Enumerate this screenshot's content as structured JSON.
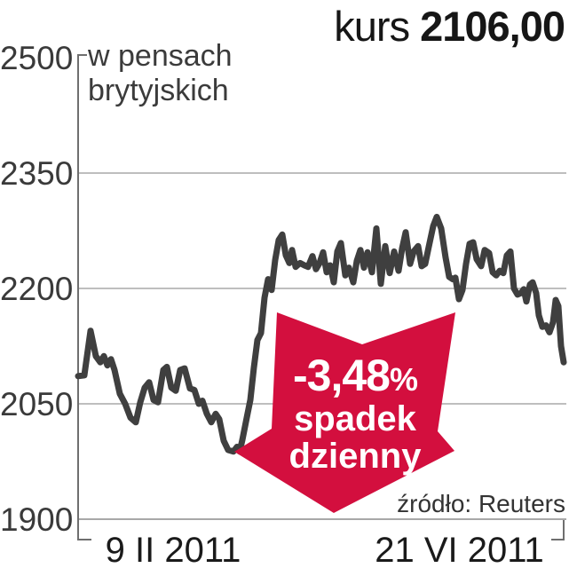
{
  "colors": {
    "line": "#3f3f3f",
    "arrow": "#d30f3e",
    "grid": "#a8a8a8",
    "axis": "#6f6f6f"
  },
  "header": {
    "kurs_label": "kurs",
    "kurs_value": "2106,00"
  },
  "chart_data": {
    "type": "line",
    "title": "kurs 2106,00",
    "ylabel": "w pensach brytyjskich",
    "xlabel": "",
    "ylim": [
      1900,
      2500
    ],
    "yticks": [
      "2500",
      "2350",
      "2200",
      "2050",
      "1900"
    ],
    "xticks": [
      "9 II 2011",
      "21 VI 2011"
    ],
    "grid": "horizontal",
    "legend": "none",
    "source": "źródło: Reuters",
    "annotation": {
      "pct": "-3,48",
      "pct_suffix": "%",
      "line2": "spadek",
      "line3": "dzienny",
      "color": "#d30f3e"
    },
    "series": [
      {
        "name": "kurs (pensy brytyjskie)",
        "points": [
          [
            88,
            2086
          ],
          [
            95,
            2087
          ],
          [
            102,
            2145
          ],
          [
            108,
            2112
          ],
          [
            113,
            2104
          ],
          [
            117,
            2112
          ],
          [
            121,
            2100
          ],
          [
            125,
            2108
          ],
          [
            129,
            2094
          ],
          [
            135,
            2063
          ],
          [
            141,
            2050
          ],
          [
            147,
            2032
          ],
          [
            153,
            2026
          ],
          [
            158,
            2052
          ],
          [
            163,
            2071
          ],
          [
            168,
            2078
          ],
          [
            173,
            2055
          ],
          [
            178,
            2052
          ],
          [
            184,
            2094
          ],
          [
            188,
            2098
          ],
          [
            193,
            2071
          ],
          [
            198,
            2067
          ],
          [
            203,
            2094
          ],
          [
            208,
            2096
          ],
          [
            214,
            2070
          ],
          [
            219,
            2068
          ],
          [
            224,
            2050
          ],
          [
            228,
            2054
          ],
          [
            233,
            2037
          ],
          [
            238,
            2026
          ],
          [
            243,
            2037
          ],
          [
            247,
            2030
          ],
          [
            252,
            2002
          ],
          [
            257,
            1990
          ],
          [
            263,
            1988
          ],
          [
            267,
            1994
          ],
          [
            270,
            1988
          ],
          [
            273,
            2003
          ],
          [
            278,
            2032
          ],
          [
            282,
            2055
          ],
          [
            286,
            2097
          ],
          [
            290,
            2133
          ],
          [
            294,
            2142
          ],
          [
            298,
            2188
          ],
          [
            302,
            2212
          ],
          [
            306,
            2198
          ],
          [
            310,
            2237
          ],
          [
            314,
            2263
          ],
          [
            318,
            2270
          ],
          [
            322,
            2243
          ],
          [
            326,
            2233
          ],
          [
            329,
            2250
          ],
          [
            333,
            2228
          ],
          [
            338,
            2233
          ],
          [
            343,
            2230
          ],
          [
            347,
            2228
          ],
          [
            352,
            2242
          ],
          [
            356,
            2225
          ],
          [
            360,
            2233
          ],
          [
            364,
            2247
          ],
          [
            368,
            2221
          ],
          [
            372,
            2230
          ],
          [
            376,
            2208
          ],
          [
            380,
            2248
          ],
          [
            384,
            2259
          ],
          [
            389,
            2217
          ],
          [
            393,
            2227
          ],
          [
            398,
            2208
          ],
          [
            402,
            2236
          ],
          [
            406,
            2250
          ],
          [
            410,
            2227
          ],
          [
            414,
            2247
          ],
          [
            419,
            2221
          ],
          [
            424,
            2278
          ],
          [
            429,
            2206
          ],
          [
            434,
            2255
          ],
          [
            439,
            2220
          ],
          [
            444,
            2248
          ],
          [
            449,
            2223
          ],
          [
            453,
            2252
          ],
          [
            457,
            2273
          ],
          [
            462,
            2232
          ],
          [
            466,
            2248
          ],
          [
            471,
            2255
          ],
          [
            475,
            2229
          ],
          [
            479,
            2232
          ],
          [
            483,
            2254
          ],
          [
            488,
            2281
          ],
          [
            492,
            2293
          ],
          [
            497,
            2278
          ],
          [
            502,
            2240
          ],
          [
            506,
            2215
          ],
          [
            510,
            2212
          ],
          [
            513,
            2214
          ],
          [
            517,
            2186
          ],
          [
            521,
            2198
          ],
          [
            525,
            2232
          ],
          [
            529,
            2258
          ],
          [
            533,
            2260
          ],
          [
            537,
            2238
          ],
          [
            542,
            2229
          ],
          [
            546,
            2250
          ],
          [
            551,
            2246
          ],
          [
            555,
            2221
          ],
          [
            559,
            2217
          ],
          [
            563,
            2223
          ],
          [
            567,
            2220
          ],
          [
            571,
            2243
          ],
          [
            575,
            2248
          ],
          [
            579,
            2200
          ],
          [
            583,
            2192
          ],
          [
            587,
            2194
          ],
          [
            590,
            2199
          ],
          [
            593,
            2183
          ],
          [
            597,
            2205
          ],
          [
            600,
            2208
          ],
          [
            604,
            2194
          ],
          [
            607,
            2165
          ],
          [
            611,
            2150
          ],
          [
            615,
            2152
          ],
          [
            619,
            2143
          ],
          [
            623,
            2156
          ],
          [
            626,
            2185
          ],
          [
            629,
            2177
          ],
          [
            632,
            2125
          ],
          [
            635,
            2104
          ]
        ]
      }
    ]
  }
}
